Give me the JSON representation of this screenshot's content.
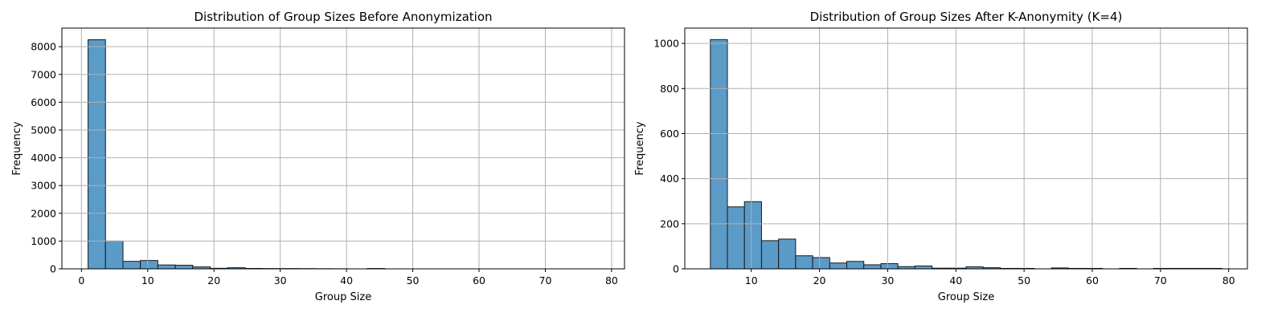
{
  "colors": {
    "bar_fill": "#5b9bc8",
    "bar_edge": "#1a1a1a",
    "grid": "#b0b0b0"
  },
  "chart_data": [
    {
      "type": "bar",
      "title": "Distribution of Group Sizes Before Anonymization",
      "xlabel": "Group Size",
      "ylabel": "Frequency",
      "xlim": [
        -2.95,
        81.95
      ],
      "ylim": [
        0,
        8670
      ],
      "xticks": [
        0,
        10,
        20,
        30,
        40,
        50,
        60,
        70,
        80
      ],
      "yticks": [
        0,
        1000,
        2000,
        3000,
        4000,
        5000,
        6000,
        7000,
        8000
      ],
      "grid": true,
      "bin_edges": [
        1.0,
        3.63,
        6.27,
        8.9,
        11.53,
        14.17,
        16.8,
        19.43,
        22.07,
        24.7,
        27.33,
        29.97,
        32.6,
        35.23,
        37.87,
        40.5,
        43.13,
        45.77,
        48.4,
        51.03,
        53.67,
        56.3,
        58.93,
        61.57,
        64.2,
        66.83,
        69.47,
        72.1,
        74.73,
        77.37,
        80.0
      ],
      "values": [
        8250,
        1000,
        270,
        300,
        140,
        130,
        70,
        20,
        40,
        15,
        10,
        10,
        8,
        5,
        3,
        0,
        12,
        0,
        0,
        0,
        0,
        0,
        0,
        0,
        0,
        0,
        0,
        0,
        0,
        0
      ]
    },
    {
      "type": "bar",
      "title": "Distribution of Group Sizes After K-Anonymity (K=4)",
      "xlabel": "Group Size",
      "ylabel": "Frequency",
      "xlim": [
        0.25,
        82.75
      ],
      "ylim": [
        0,
        1068
      ],
      "xticks": [
        10,
        20,
        30,
        40,
        50,
        60,
        70,
        80
      ],
      "yticks": [
        0,
        200,
        400,
        600,
        800,
        1000
      ],
      "grid": true,
      "bin_edges": [
        4.0,
        6.5,
        9.0,
        11.5,
        14.0,
        16.5,
        19.0,
        21.5,
        24.0,
        26.5,
        29.0,
        31.5,
        34.0,
        36.5,
        39.0,
        41.5,
        44.0,
        46.5,
        49.0,
        51.5,
        54.0,
        56.5,
        59.0,
        61.5,
        64.0,
        66.5,
        69.0,
        71.5,
        74.0,
        76.5,
        79.0
      ],
      "values": [
        1017,
        275,
        298,
        125,
        132,
        58,
        50,
        26,
        33,
        18,
        23,
        10,
        13,
        3,
        3,
        9,
        5,
        2,
        2,
        0,
        4,
        2,
        2,
        0,
        2,
        0,
        2,
        2,
        2,
        2
      ]
    }
  ]
}
